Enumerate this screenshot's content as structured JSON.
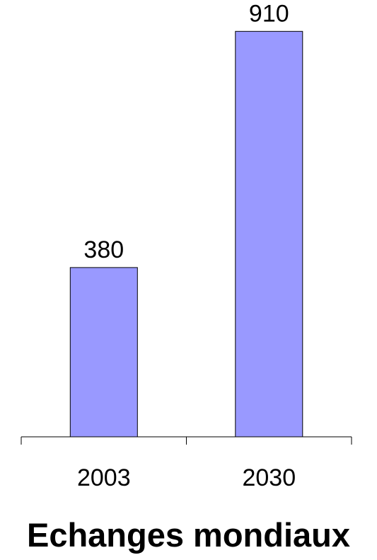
{
  "chart_data": {
    "type": "bar",
    "title": "Echanges mondiaux",
    "categories": [
      "2003",
      "2030"
    ],
    "values": [
      380,
      910
    ],
    "data_labels": [
      "380",
      "910"
    ],
    "xlabel": "",
    "ylabel": "",
    "ylim": [
      0,
      1000
    ],
    "grid": false,
    "legend": "none",
    "colors": {
      "bar_fill": "#9999ff",
      "bar_stroke": "#000000",
      "axis": "#000000",
      "text": "#000000"
    }
  }
}
